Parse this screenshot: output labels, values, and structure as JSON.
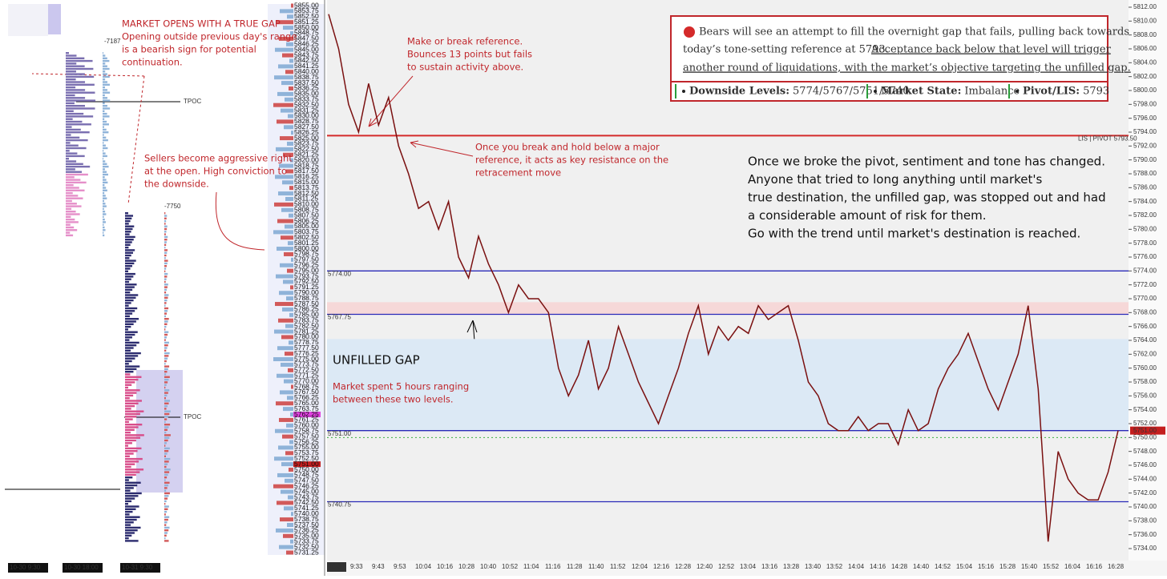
{
  "left_panel": {
    "dates": [
      "10-30 9:30",
      "10-30 18:00",
      "10-31 9:30"
    ],
    "tpoc": [
      "TPOC",
      "TPOC"
    ],
    "profile_totals": [
      "-7187",
      "-7750"
    ],
    "ladder": [
      "5855.00",
      "5853.75",
      "5852.50",
      "5851.25",
      "5850.00",
      "5848.75",
      "5847.50",
      "5846.25",
      "5845.00",
      "5843.75",
      "5842.50",
      "5841.25",
      "5840.00",
      "5838.75",
      "5837.50",
      "5836.25",
      "5835.00",
      "5833.75",
      "5832.50",
      "5831.25",
      "5830.00",
      "5828.75",
      "5827.50",
      "5826.25",
      "5825.00",
      "5823.75",
      "5822.50",
      "5821.25",
      "5820.00",
      "5818.75",
      "5817.50",
      "5816.25",
      "5815.00",
      "5813.75",
      "5812.50",
      "5811.25",
      "5810.00",
      "5808.75",
      "5807.50",
      "5806.25",
      "5805.00",
      "5803.75",
      "5802.50",
      "5801.25",
      "5800.00",
      "5798.75",
      "5797.50",
      "5796.25",
      "5795.00",
      "5793.75",
      "5792.50",
      "5791.25",
      "5790.00",
      "5788.75",
      "5787.50",
      "5786.25",
      "5785.00",
      "5783.75",
      "5782.50",
      "5781.25",
      "5780.00",
      "5778.75",
      "5777.50",
      "5776.25",
      "5775.00",
      "5773.75",
      "5772.50",
      "5771.25",
      "5770.00",
      "5768.75",
      "5767.50",
      "5766.25",
      "5765.00",
      "5763.75",
      "5762.25",
      "5761.25",
      "5760.00",
      "5758.75",
      "5757.50",
      "5756.25",
      "5755.00",
      "5753.75",
      "5752.50",
      "5751.00",
      "5750.00",
      "5748.75",
      "5747.50",
      "5746.25",
      "5745.00",
      "5743.75",
      "5742.50",
      "5741.25",
      "5740.00",
      "5738.75",
      "5737.50",
      "5736.25",
      "5735.00",
      "5733.75",
      "5732.50",
      "5731.25"
    ],
    "ladder_highlight": [
      74,
      83
    ]
  },
  "annotations": {
    "gap_title": "MARKET OPENS WITH A TRUE GAP",
    "gap_body": [
      "Opening outside previous day's range",
      "is a bearish sign for potential",
      "continuation."
    ],
    "sellers": [
      "Sellers become aggressive right",
      "at the open. High conviction to",
      "the downside."
    ],
    "make_break": [
      "Make or break reference.",
      "Bounces 13 points but fails",
      "to sustain activity above."
    ],
    "resistance": [
      "Once you break and hold below a major",
      "reference, it acts as key resistance on the",
      "retracement move"
    ],
    "unfilled": "UNFILLED GAP",
    "ranging": [
      "Market spent 5 hours ranging",
      "between these two levels."
    ],
    "commentary": [
      "Once we broke the pivot, sentiment and tone has changed.",
      "Anyone that tried to long anything until market's",
      "true destination, the unfilled gap, was stopped out and had",
      "a considerable amount of risk for them.",
      "Go with the trend until market's destination is reached."
    ]
  },
  "banner": {
    "line1": "Bears will see an attempt to fill the overnight gap that fails, pulling back towards",
    "line2a": "today’s tone-setting reference at 5793.",
    "line2b": "Acceptance back below that level will trigger",
    "line3": "another round of liquidations, with the market’s objective targeting the unfilled gap.",
    "levels": [
      {
        "label": "Downside Levels:",
        "value": "5774/5767/5751/5740"
      },
      {
        "label": "Market State:",
        "value": "Imbalance"
      },
      {
        "label": "Pivot/LIS:",
        "value": "5793"
      }
    ]
  },
  "chart": {
    "ylim": [
      5734,
      5812
    ],
    "yticks": [
      "5812.00",
      "5810.00",
      "5808.00",
      "5806.00",
      "5804.00",
      "5802.00",
      "5800.00",
      "5798.00",
      "5796.00",
      "5794.00",
      "5792.00",
      "5790.00",
      "5788.00",
      "5786.00",
      "5784.00",
      "5782.00",
      "5780.00",
      "5778.00",
      "5776.00",
      "5774.00",
      "5772.00",
      "5770.00",
      "5768.00",
      "5766.00",
      "5764.00",
      "5762.00",
      "5760.00",
      "5758.00",
      "5756.00",
      "5754.00",
      "5752.00",
      "5750.00",
      "5748.00",
      "5746.00",
      "5744.00",
      "5742.00",
      "5740.00",
      "5738.00",
      "5736.00",
      "5734.00"
    ],
    "times": [
      "9:33",
      "9:43",
      "9:53",
      "10:04",
      "10:16",
      "10:28",
      "10:40",
      "10:52",
      "11:04",
      "11:16",
      "11:28",
      "11:40",
      "11:52",
      "12:04",
      "12:16",
      "12:28",
      "12:40",
      "12:52",
      "13:04",
      "13:16",
      "13:28",
      "13:40",
      "13:52",
      "14:04",
      "14:16",
      "14:28",
      "14:40",
      "14:52",
      "15:04",
      "15:16",
      "15:28",
      "15:40",
      "15:52",
      "16:04",
      "16:16",
      "16:28"
    ],
    "date_label": "10-31",
    "levels": [
      {
        "value": 5793.5,
        "label": "LIS | PIVOT  5793.50",
        "color": "#d42a2a"
      },
      {
        "value": 5774,
        "label": "5774.00",
        "color": "#2a2ab8"
      },
      {
        "value": 5767.75,
        "label": "5767.75",
        "color": "#2a2ab8"
      },
      {
        "value": 5751,
        "label": "5751.00",
        "color": "#2a2ab8"
      },
      {
        "value": 5740.75,
        "label": "5740.75",
        "color": "#2a2ab8"
      }
    ],
    "last_price": "5751.00",
    "price": [
      5811,
      5806,
      5798,
      5794,
      5801,
      5795,
      5799,
      5792,
      5788,
      5783,
      5784,
      5780,
      5784,
      5776,
      5773,
      5779,
      5775,
      5772,
      5768,
      5772,
      5770,
      5770,
      5768,
      5760,
      5756,
      5759,
      5764,
      5757,
      5760,
      5766,
      5762,
      5758,
      5755,
      5752,
      5756,
      5760,
      5765,
      5769,
      5762,
      5766,
      5764,
      5766,
      5765,
      5769,
      5767,
      5768,
      5769,
      5764,
      5758,
      5756,
      5752,
      5751,
      5751,
      5753,
      5751,
      5752,
      5752,
      5749,
      5754,
      5751,
      5752,
      5757,
      5760,
      5762,
      5765,
      5761,
      5757,
      5754,
      5758,
      5762,
      5769,
      5757,
      5735,
      5748,
      5744,
      5742,
      5741,
      5741,
      5745,
      5751
    ]
  }
}
